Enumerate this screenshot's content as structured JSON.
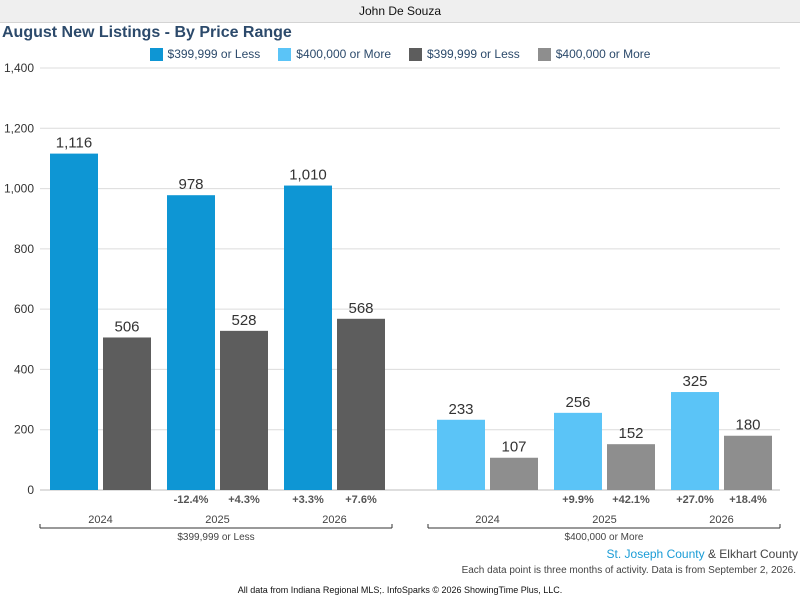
{
  "header": {
    "agent_name": "John De Souza"
  },
  "chart_data": {
    "type": "bar",
    "title": "August New Listings - By Price Range",
    "ylim": [
      0,
      1400
    ],
    "yticks": [
      0,
      200,
      400,
      600,
      800,
      1000,
      1200,
      1400
    ],
    "ytick_labels": [
      "0",
      "200",
      "400",
      "600",
      "800",
      "1,000",
      "1,200",
      "1,400"
    ],
    "grid": true,
    "legend_position": "top-center",
    "legend": [
      {
        "label": "$399,999 or Less",
        "color": "#0e96d4"
      },
      {
        "label": "$400,000 or More",
        "color": "#5bc4f7"
      },
      {
        "label": "$399,999 or Less",
        "color": "#5d5d5d"
      },
      {
        "label": "$400,000 or More",
        "color": "#8e8e8e"
      }
    ],
    "groups": [
      {
        "name": "$399,999 or Less",
        "categories": [
          "2024",
          "2025",
          "2026"
        ],
        "series": [
          {
            "region": "St. Joseph County",
            "color": "#0e96d4",
            "values": [
              1116,
              978,
              1010
            ],
            "value_labels": [
              "1,116",
              "978",
              "1,010"
            ],
            "changes": [
              "",
              "-12.4%",
              "+3.3%"
            ]
          },
          {
            "region": "Elkhart County",
            "color": "#5d5d5d",
            "values": [
              506,
              528,
              568
            ],
            "value_labels": [
              "506",
              "528",
              "568"
            ],
            "changes": [
              "",
              "+4.3%",
              "+7.6%"
            ]
          }
        ]
      },
      {
        "name": "$400,000 or More",
        "categories": [
          "2024",
          "2025",
          "2026"
        ],
        "series": [
          {
            "region": "St. Joseph County",
            "color": "#5bc4f7",
            "values": [
              233,
              256,
              325
            ],
            "value_labels": [
              "233",
              "256",
              "325"
            ],
            "changes": [
              "",
              "+9.9%",
              "+27.0%"
            ]
          },
          {
            "region": "Elkhart County",
            "color": "#8e8e8e",
            "values": [
              107,
              152,
              180
            ],
            "value_labels": [
              "107",
              "152",
              "180"
            ],
            "changes": [
              "",
              "+42.1%",
              "+18.4%"
            ]
          }
        ]
      }
    ]
  },
  "footer": {
    "region1": "St. Joseph County",
    "region_joiner": "&",
    "region2": "Elkhart County",
    "note": "Each data point is three months of activity. Data is from September 2, 2026.",
    "source": "All data from Indiana Regional MLS;. InfoSparks © 2026 ShowingTime Plus, LLC."
  }
}
